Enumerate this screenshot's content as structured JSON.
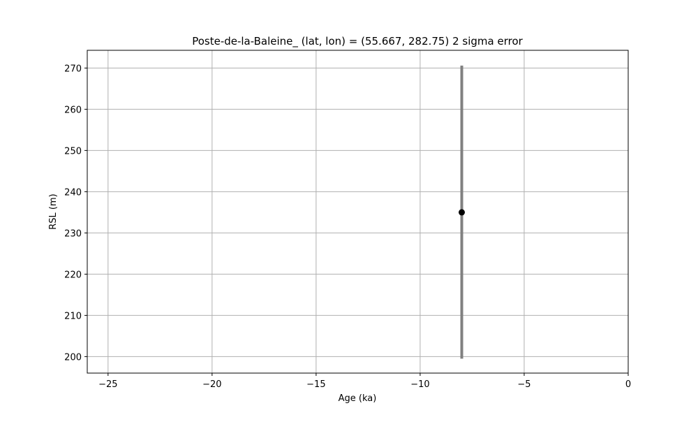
{
  "chart_data": {
    "type": "scatter",
    "title": "Poste-de-la-Baleine_ (lat, lon) = (55.667, 282.75)  2 sigma error",
    "xlabel": "Age (ka)",
    "ylabel": "RSL (m)",
    "xlim": [
      -26,
      0
    ],
    "ylim": [
      196,
      274.3
    ],
    "x_ticks": [
      -25,
      -20,
      -15,
      -10,
      -5,
      0
    ],
    "x_tick_labels": [
      "−25",
      "−20",
      "−15",
      "−10",
      "−5",
      "0"
    ],
    "y_ticks": [
      200,
      210,
      220,
      230,
      240,
      250,
      260,
      270
    ],
    "y_tick_labels": [
      "200",
      "210",
      "220",
      "230",
      "240",
      "250",
      "260",
      "270"
    ],
    "grid": true,
    "legend": "none",
    "series": [
      {
        "points": [
          {
            "x": -8.0,
            "y": 235.0,
            "y_err_low": 199.5,
            "y_err_high": 270.6
          }
        ]
      }
    ],
    "colors": {
      "marker": "#000000",
      "errorbar": "#808080",
      "grid": "#b0b0b0",
      "axes": "#000000"
    }
  }
}
